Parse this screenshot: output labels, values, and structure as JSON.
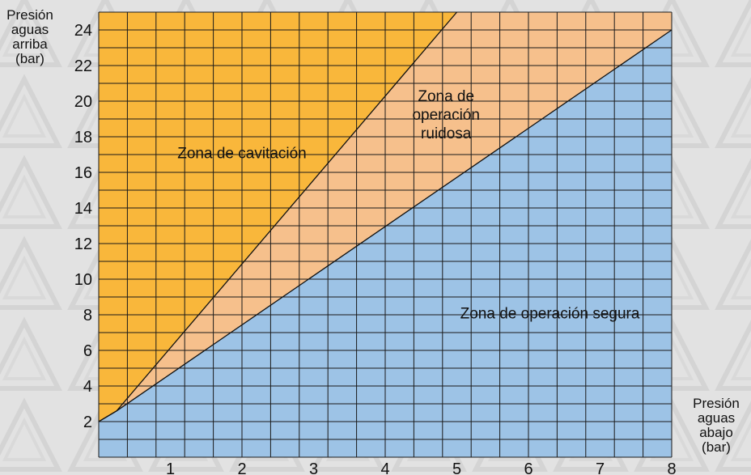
{
  "chart_data": {
    "type": "area",
    "title": "",
    "ylabel_lines": [
      "Presión",
      "aguas",
      "arriba",
      "(bar)"
    ],
    "xlabel_lines": [
      "Presión",
      "aguas",
      "abajo",
      "(bar)"
    ],
    "xlim": [
      0,
      8
    ],
    "ylim": [
      0,
      25
    ],
    "x_ticks": [
      1,
      2,
      3,
      4,
      5,
      6,
      7,
      8
    ],
    "y_ticks": [
      2,
      4,
      6,
      8,
      10,
      12,
      14,
      16,
      18,
      20,
      22,
      24
    ],
    "grid": true,
    "grid_x_step": 0.4,
    "grid_y_step": 1,
    "boundaries": [
      {
        "name": "cavitation_limit",
        "points": [
          [
            0,
            2
          ],
          [
            0.25,
            2.6
          ],
          [
            5,
            25
          ]
        ]
      },
      {
        "name": "noise_limit",
        "points": [
          [
            0,
            2
          ],
          [
            0.25,
            2.6
          ],
          [
            8,
            24
          ]
        ]
      }
    ],
    "zones": [
      {
        "id": "cavitation",
        "label_lines": [
          "Zona de cavitación"
        ],
        "anchor": [
          2,
          16.8
        ],
        "color": "#f9b73b"
      },
      {
        "id": "noisy",
        "label_lines": [
          "Zona de",
          "operación",
          "ruidosa"
        ],
        "anchor": [
          4.85,
          20
        ],
        "color": "#f6c08c"
      },
      {
        "id": "safe",
        "label_lines": [
          "Zona de operación segura"
        ],
        "anchor": [
          6.3,
          7.8
        ],
        "color": "#9dc3e6"
      }
    ],
    "colors": {
      "grid": "#1a1a1a",
      "background": "#e2e2e2"
    }
  }
}
